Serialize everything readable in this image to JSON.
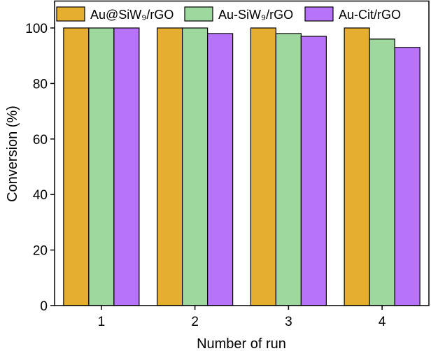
{
  "chart_data": {
    "type": "bar",
    "title": "",
    "xlabel": "Number of run",
    "ylabel": "Conversion (%)",
    "categories": [
      "1",
      "2",
      "3",
      "4"
    ],
    "ylim": [
      0,
      110
    ],
    "yticks": [
      "0",
      "20",
      "40",
      "60",
      "80",
      "100"
    ],
    "grid": false,
    "legend_placement": "top",
    "series": [
      {
        "name": "Au@SiW₉/rGO",
        "color": "#E6AE2E",
        "values": [
          100,
          100,
          100,
          100
        ]
      },
      {
        "name": "Au-SiW₉/rGO",
        "color": "#9FD89F",
        "values": [
          100,
          100,
          98,
          96
        ]
      },
      {
        "name": "Au-Cit/rGO",
        "color": "#B873FB",
        "values": [
          100,
          98,
          97,
          93
        ]
      }
    ]
  }
}
